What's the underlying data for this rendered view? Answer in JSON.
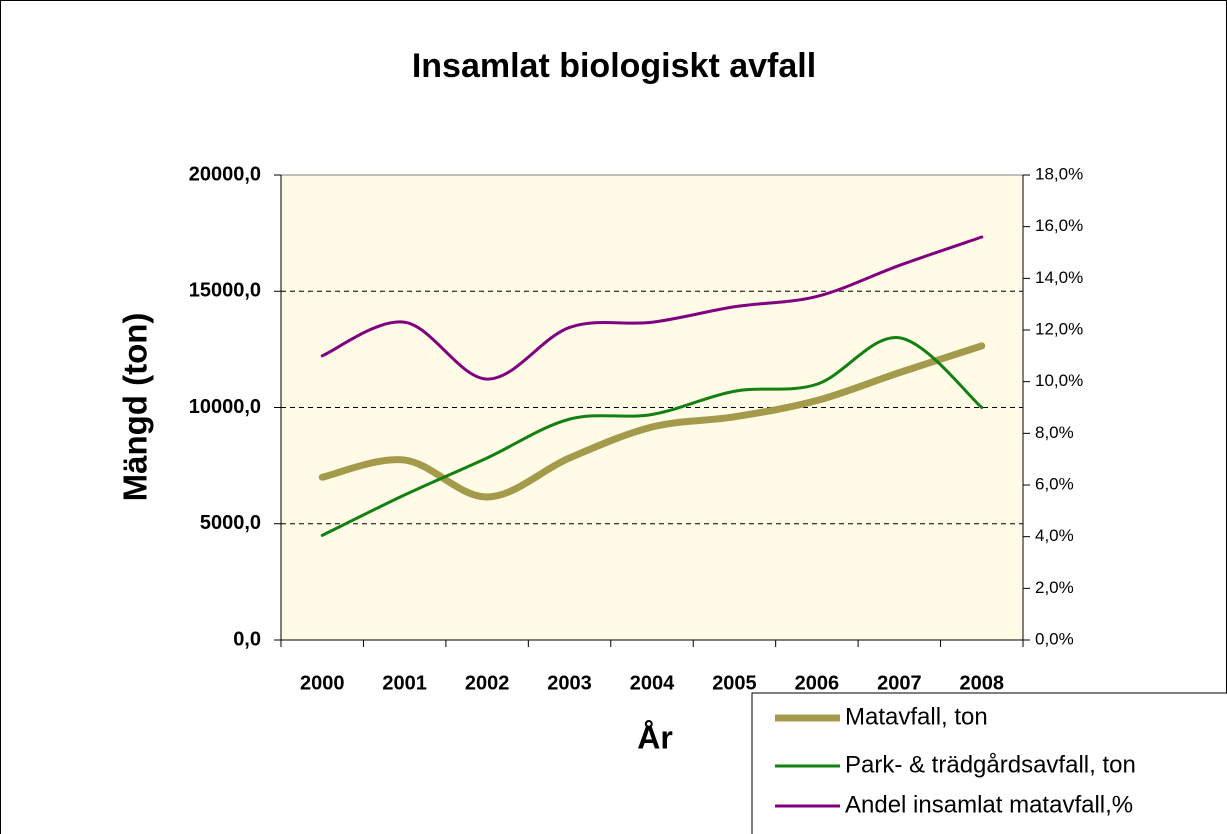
{
  "chart_data": {
    "type": "line",
    "title": "Insamlat biologiskt avfall",
    "xlabel": "År",
    "ylabel": "Mängd (ton)",
    "categories": [
      "2000",
      "2001",
      "2002",
      "2003",
      "2004",
      "2005",
      "2006",
      "2007",
      "2008"
    ],
    "series": [
      {
        "name": "Matavfall, ton",
        "color": "#a39b4b",
        "values": [
          7000,
          7740,
          6150,
          7830,
          9160,
          9600,
          10300,
          11500,
          12650
        ]
      },
      {
        "name": "Park- & trädgårdsavfall, ton",
        "color": "#128012",
        "values": [
          4500,
          6240,
          7830,
          9500,
          9700,
          10700,
          11000,
          13000,
          10000
        ]
      },
      {
        "name": "Andel insamlat matavfall,%",
        "color": "#800080",
        "axis": "y2",
        "values": [
          11.0,
          12.3,
          10.1,
          12.1,
          12.3,
          12.9,
          13.3,
          14.5,
          15.6
        ]
      }
    ],
    "ylim": [
      0,
      20000
    ],
    "yticks": [
      {
        "value": 0,
        "label": "0,0"
      },
      {
        "value": 5000,
        "label": "5000,0"
      },
      {
        "value": 10000,
        "label": "10000,0"
      },
      {
        "value": 15000,
        "label": "15000,0"
      },
      {
        "value": 20000,
        "label": "20000,0"
      }
    ],
    "y2lim": [
      0,
      18
    ],
    "y2ticks": [
      {
        "value": 0,
        "label": "0,0%"
      },
      {
        "value": 2,
        "label": "2,0%"
      },
      {
        "value": 4,
        "label": "4,0%"
      },
      {
        "value": 6,
        "label": "6,0%"
      },
      {
        "value": 8,
        "label": "8,0%"
      },
      {
        "value": 10,
        "label": "10,0%"
      },
      {
        "value": 12,
        "label": "12,0%"
      },
      {
        "value": 14,
        "label": "14,0%"
      },
      {
        "value": 16,
        "label": "16,0%"
      },
      {
        "value": 18,
        "label": "18,0%"
      }
    ],
    "grid": true,
    "legend": "bottom-right"
  }
}
